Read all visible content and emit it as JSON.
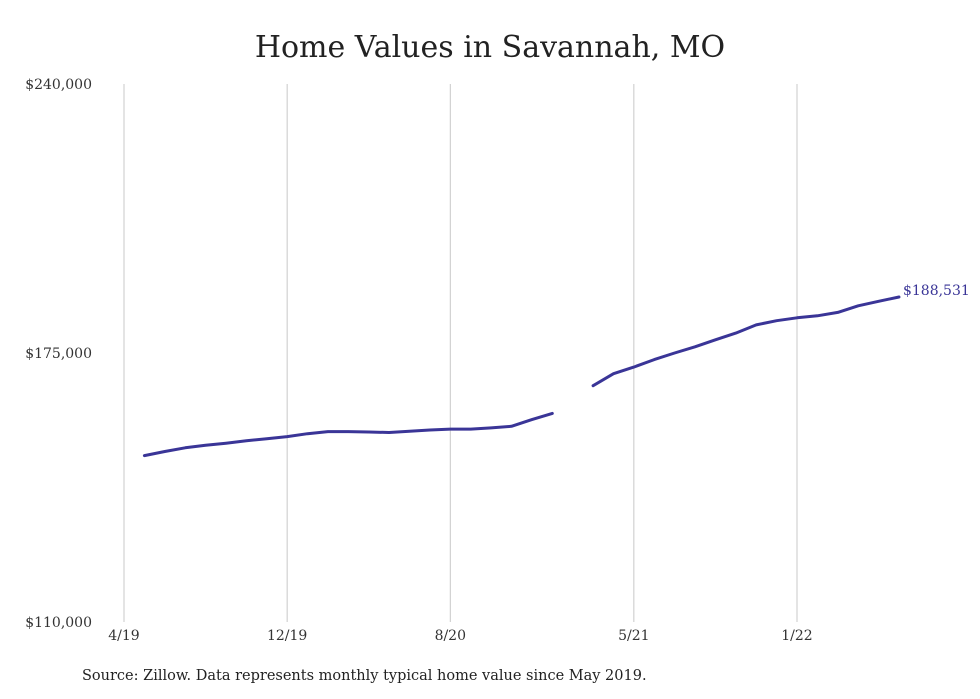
{
  "chart_data": {
    "type": "line",
    "title": "Home Values in Savannah, MO",
    "xlabel": "",
    "ylabel": "",
    "ylim": [
      110000,
      240000
    ],
    "yticks": [
      110000,
      175000,
      240000
    ],
    "ytick_labels": [
      "$110,000",
      "$175,000",
      "$240,000"
    ],
    "xtick_labels": [
      "4/19",
      "12/19",
      "8/20",
      "5/21",
      "1/22"
    ],
    "xtick_dates": [
      "2019-04",
      "2019-12",
      "2020-08",
      "2021-05",
      "2022-01"
    ],
    "grid": "vertical",
    "line_color": "#3a3597",
    "end_label": "$188,531",
    "series": [
      {
        "segments": [
          [
            {
              "x": "2019-05",
              "y": 150200
            },
            {
              "x": "2019-06",
              "y": 151200
            },
            {
              "x": "2019-07",
              "y": 152100
            },
            {
              "x": "2019-08",
              "y": 152700
            },
            {
              "x": "2019-09",
              "y": 153200
            },
            {
              "x": "2019-10",
              "y": 153800
            },
            {
              "x": "2019-11",
              "y": 154300
            },
            {
              "x": "2019-12",
              "y": 154800
            },
            {
              "x": "2020-01",
              "y": 155500
            },
            {
              "x": "2020-02",
              "y": 156000
            },
            {
              "x": "2020-03",
              "y": 156000
            },
            {
              "x": "2020-04",
              "y": 155900
            },
            {
              "x": "2020-05",
              "y": 155800
            },
            {
              "x": "2020-06",
              "y": 156100
            },
            {
              "x": "2020-07",
              "y": 156400
            },
            {
              "x": "2020-08",
              "y": 156600
            },
            {
              "x": "2020-09",
              "y": 156600
            },
            {
              "x": "2020-10",
              "y": 156900
            },
            {
              "x": "2020-11",
              "y": 157300
            },
            {
              "x": "2020-12",
              "y": 158900
            },
            {
              "x": "2021-01",
              "y": 160400
            }
          ],
          [
            {
              "x": "2021-03",
              "y": 167100
            },
            {
              "x": "2021-04",
              "y": 170000
            },
            {
              "x": "2021-05",
              "y": 171600
            },
            {
              "x": "2021-06",
              "y": 173400
            },
            {
              "x": "2021-07",
              "y": 175000
            },
            {
              "x": "2021-08",
              "y": 176500
            },
            {
              "x": "2021-09",
              "y": 178200
            },
            {
              "x": "2021-10",
              "y": 179800
            },
            {
              "x": "2021-11",
              "y": 181800
            },
            {
              "x": "2021-12",
              "y": 182800
            },
            {
              "x": "2022-01",
              "y": 183500
            },
            {
              "x": "2022-02",
              "y": 184000
            },
            {
              "x": "2022-03",
              "y": 184800
            },
            {
              "x": "2022-04",
              "y": 186400
            },
            {
              "x": "2022-05",
              "y": 187500
            },
            {
              "x": "2022-06",
              "y": 188531
            }
          ]
        ]
      }
    ]
  },
  "source_note": "Source: Zillow. Data represents monthly typical home value since May 2019."
}
